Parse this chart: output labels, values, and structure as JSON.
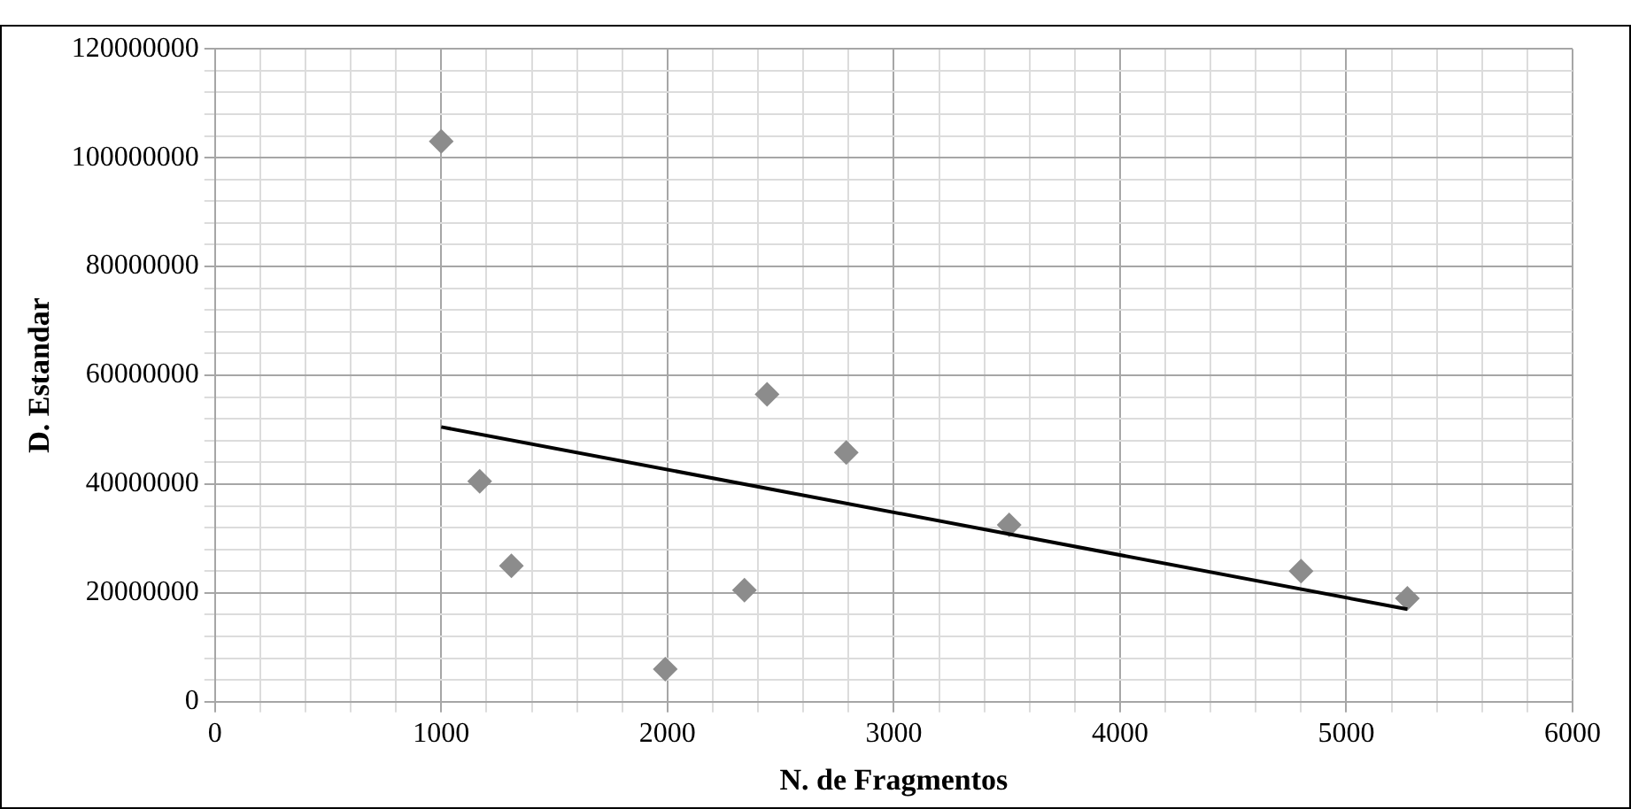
{
  "chart_data": {
    "type": "scatter",
    "xlabel": "N. de Fragmentos",
    "ylabel": "D. Estandar",
    "xlim": [
      0,
      6000
    ],
    "ylim": [
      0,
      120000000
    ],
    "xticks": [
      0,
      {
        "value": 200,
        "label": null
      },
      {
        "value": 400,
        "label": null
      },
      {
        "value": 600,
        "label": null
      },
      {
        "value": 800,
        "label": null
      },
      1000,
      {
        "value": 1200,
        "label": null
      },
      {
        "value": 1400,
        "label": null
      },
      {
        "value": 1600,
        "label": null
      },
      {
        "value": 1800,
        "label": null
      },
      2000,
      {
        "value": 2200,
        "label": null
      },
      {
        "value": 2400,
        "label": null
      },
      {
        "value": 2600,
        "label": null
      },
      {
        "value": 2800,
        "label": null
      },
      3000,
      {
        "value": 3200,
        "label": null
      },
      {
        "value": 3400,
        "label": null
      },
      {
        "value": 3600,
        "label": null
      },
      {
        "value": 3800,
        "label": null
      },
      4000,
      {
        "value": 4200,
        "label": null
      },
      {
        "value": 4400,
        "label": null
      },
      {
        "value": 4600,
        "label": null
      },
      {
        "value": 4800,
        "label": null
      },
      5000,
      {
        "value": 5200,
        "label": null
      },
      {
        "value": 5400,
        "label": null
      },
      {
        "value": 5600,
        "label": null
      },
      {
        "value": 5800,
        "label": null
      },
      6000
    ],
    "yticks": [
      0,
      {
        "value": 4000000,
        "label": null
      },
      {
        "value": 8000000,
        "label": null
      },
      {
        "value": 12000000,
        "label": null
      },
      {
        "value": 16000000,
        "label": null
      },
      20000000,
      {
        "value": 24000000,
        "label": null
      },
      {
        "value": 28000000,
        "label": null
      },
      {
        "value": 32000000,
        "label": null
      },
      {
        "value": 36000000,
        "label": null
      },
      40000000,
      {
        "value": 44000000,
        "label": null
      },
      {
        "value": 48000000,
        "label": null
      },
      {
        "value": 52000000,
        "label": null
      },
      {
        "value": 56000000,
        "label": null
      },
      60000000,
      {
        "value": 64000000,
        "label": null
      },
      {
        "value": 68000000,
        "label": null
      },
      {
        "value": 72000000,
        "label": null
      },
      {
        "value": 76000000,
        "label": null
      },
      80000000,
      {
        "value": 84000000,
        "label": null
      },
      {
        "value": 88000000,
        "label": null
      },
      {
        "value": 92000000,
        "label": null
      },
      {
        "value": 96000000,
        "label": null
      },
      100000000,
      {
        "value": 104000000,
        "label": null
      },
      {
        "value": 108000000,
        "label": null
      },
      {
        "value": 112000000,
        "label": null
      },
      {
        "value": 116000000,
        "label": null
      },
      120000000
    ],
    "grid": true,
    "legend": false,
    "series": [
      {
        "type": "scatter",
        "color": "#8c8c8c",
        "marker": "diamond",
        "x": [
          1000,
          1170,
          1310,
          1990,
          2340,
          2440,
          2790,
          3510,
          4800,
          5270
        ],
        "values": [
          103000000,
          40500000,
          25000000,
          6000000,
          20500000,
          56500000,
          45800000,
          32500000,
          24000000,
          19000000
        ]
      },
      {
        "type": "line",
        "color": "#000000",
        "marker": "none",
        "line_style": "solid",
        "x": [
          1000,
          5270
        ],
        "values": [
          50500000,
          17000000
        ]
      }
    ]
  }
}
